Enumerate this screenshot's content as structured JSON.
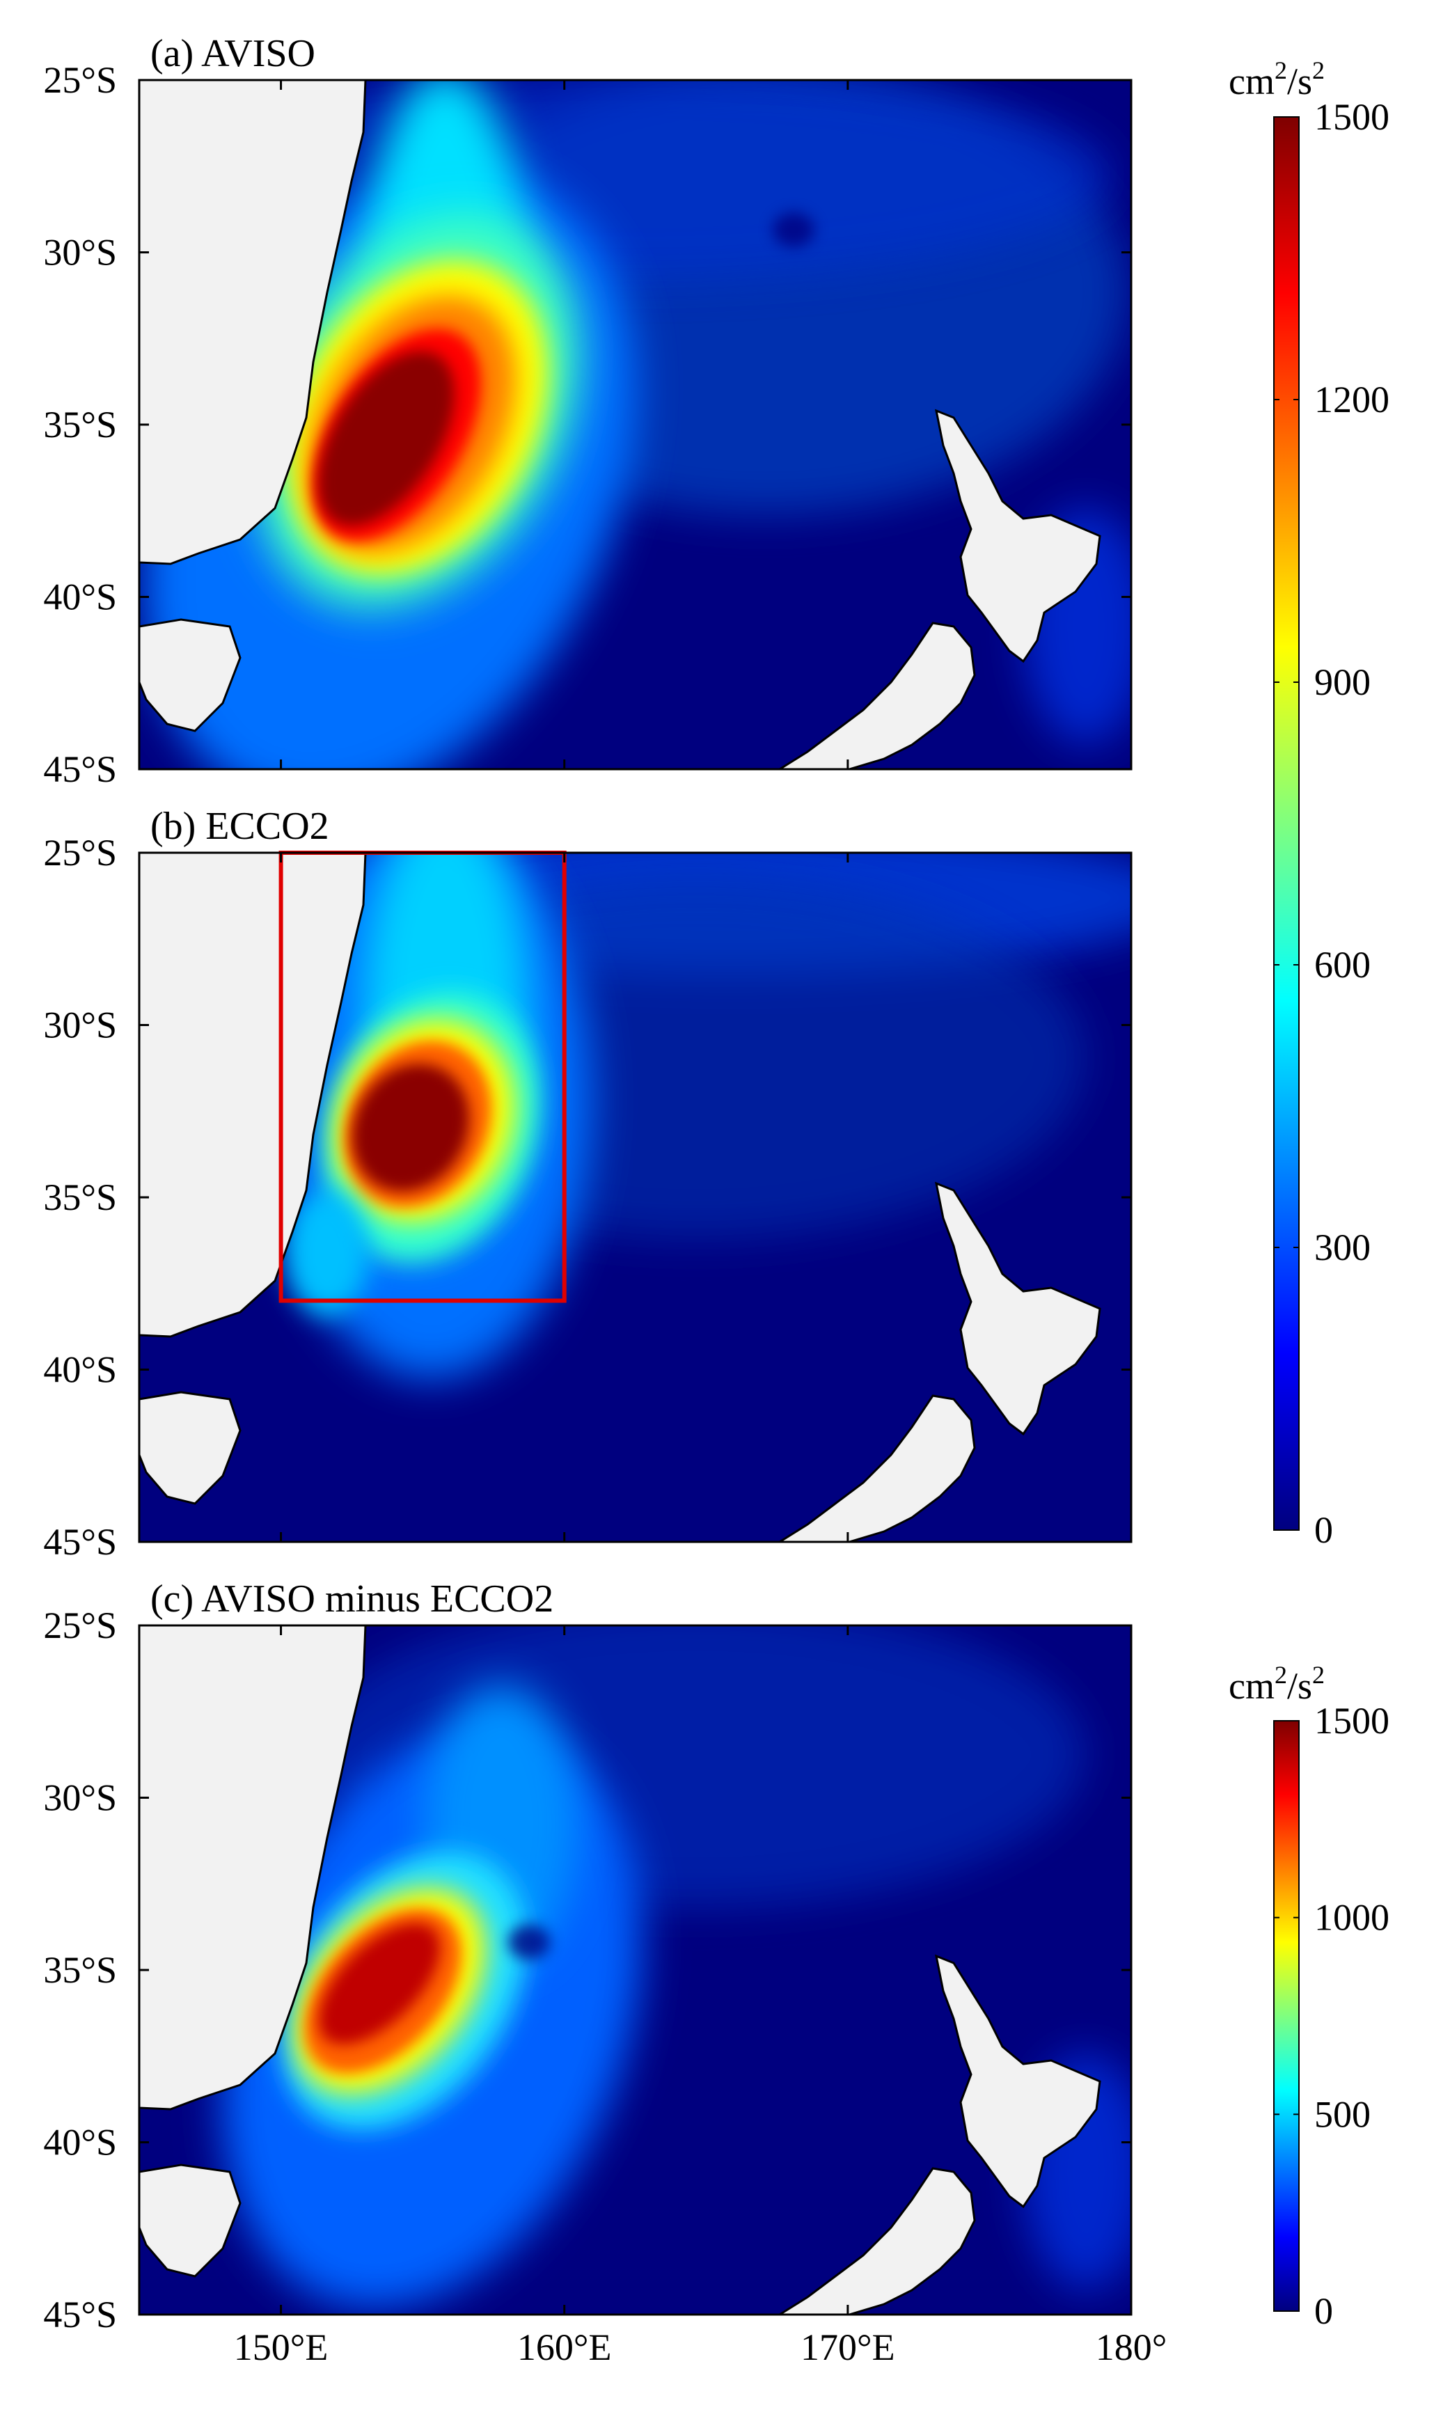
{
  "figure": {
    "map_extent": {
      "lon": [
        145,
        180
      ],
      "lat": [
        -45,
        -25
      ]
    },
    "panels": [
      {
        "id": "a",
        "title": "(a) AVISO",
        "field": "aviso",
        "colorbar_ref": 0
      },
      {
        "id": "b",
        "title": "(b) ECCO2",
        "field": "ecco2",
        "colorbar_ref": 0,
        "highlight_box": {
          "lon": [
            150,
            160
          ],
          "lat": [
            -38,
            -25
          ],
          "color": "#e00000"
        }
      },
      {
        "id": "c",
        "title": "(c) AVISO minus ECCO2",
        "field": "diff",
        "colorbar_ref": 1
      }
    ],
    "y_ticks": [
      {
        "value": -25,
        "label": "25°S"
      },
      {
        "value": -30,
        "label": "30°S"
      },
      {
        "value": -35,
        "label": "35°S"
      },
      {
        "value": -40,
        "label": "40°S"
      },
      {
        "value": -45,
        "label": "45°S"
      }
    ],
    "x_ticks": [
      {
        "value": 150,
        "label": "150°E"
      },
      {
        "value": 160,
        "label": "160°E"
      },
      {
        "value": 170,
        "label": "170°E"
      },
      {
        "value": 180,
        "label": "180°"
      }
    ],
    "colorbars": [
      {
        "unit_base": "cm",
        "unit_exp1": "2",
        "unit_mid": "/s",
        "unit_exp2": "2",
        "range": [
          0,
          1500
        ],
        "ticks": [
          "0",
          "300",
          "600",
          "900",
          "1200",
          "1500"
        ],
        "tick_values": [
          0,
          300,
          600,
          900,
          1200,
          1500
        ]
      },
      {
        "unit_base": "cm",
        "unit_exp1": "2",
        "unit_mid": "/s",
        "unit_exp2": "2",
        "range": [
          0,
          1500
        ],
        "ticks": [
          "0",
          "500",
          "1000",
          "1500"
        ],
        "tick_values": [
          0,
          500,
          1000,
          1500
        ]
      }
    ],
    "colors": {
      "colormap": [
        "#00007f",
        "#0000ff",
        "#007fff",
        "#00ffff",
        "#7fff7f",
        "#ffff00",
        "#ff7f00",
        "#ff0000",
        "#7f0000"
      ],
      "land": "#f2f2f2",
      "coast": "#000000",
      "box": "#e00000"
    }
  }
}
